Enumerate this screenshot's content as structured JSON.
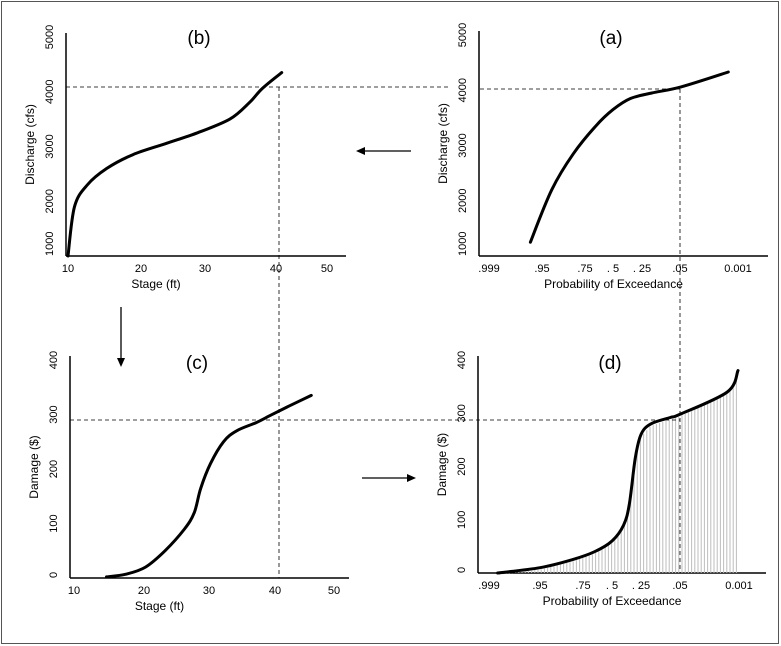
{
  "chart_data": [
    {
      "id": "a",
      "type": "line",
      "title": "(a)",
      "xlabel": "Probability of Exceedance",
      "ylabel": "Discharge  (cfs)",
      "xticks": [
        ".999",
        ".95",
        ".75",
        ". 5",
        ". 25",
        ".05",
        "0.001"
      ],
      "yticks": [
        "1000",
        "2000",
        "3000",
        "4000",
        "5000"
      ],
      "ylim": [
        1000,
        5000
      ],
      "x": [
        ".96",
        ".90",
        ".80",
        ".65",
        ".50",
        ".35",
        ".20",
        ".05",
        ".01"
      ],
      "y": [
        1250,
        2200,
        2850,
        3350,
        3650,
        3850,
        3950,
        4060,
        4330
      ],
      "shaded": false
    },
    {
      "id": "b",
      "type": "line",
      "title": "(b)",
      "xlabel": "Stage (ft)",
      "ylabel": "Discharge  (cfs)",
      "xticks": [
        "10",
        "20",
        "30",
        "40",
        "50"
      ],
      "yticks": [
        "1000",
        "2000",
        "3000",
        "4000",
        "5000"
      ],
      "xlim": [
        10,
        50
      ],
      "ylim": [
        1000,
        5000
      ],
      "x": [
        10,
        11,
        13,
        16,
        20,
        25,
        30,
        35,
        38,
        40,
        43
      ],
      "y": [
        1000,
        1900,
        2300,
        2600,
        2850,
        3050,
        3250,
        3500,
        3800,
        4060,
        4350
      ],
      "shaded": false
    },
    {
      "id": "c",
      "type": "line",
      "title": "(c)",
      "xlabel": "Stage (ft)",
      "ylabel": "Damage ($)",
      "xticks": [
        "10",
        "20",
        "30",
        "40",
        "50"
      ],
      "yticks": [
        "0",
        "100",
        "200",
        "300",
        "400"
      ],
      "xlim": [
        10,
        50
      ],
      "ylim": [
        0,
        400
      ],
      "x": [
        15,
        18,
        21,
        24,
        27,
        28.5,
        29.5,
        31,
        33,
        35,
        38,
        40,
        43,
        46.5
      ],
      "y": [
        2,
        7,
        20,
        50,
        90,
        120,
        165,
        210,
        250,
        270,
        285,
        297,
        315,
        335
      ],
      "shaded": false
    },
    {
      "id": "d",
      "type": "area",
      "title": "(d)",
      "xlabel": "Probability of Exceedance",
      "ylabel": "Damage ($)",
      "xticks": [
        ".999",
        ".95",
        ".75",
        ". 5",
        ". 25",
        ".05",
        "0.001"
      ],
      "yticks": [
        "0",
        "100",
        "200",
        "300",
        "400"
      ],
      "ylim": [
        0,
        400
      ],
      "x": [
        ".99",
        ".95",
        ".80",
        ".65",
        ".50",
        ".40",
        ".35",
        ".30",
        ".25",
        ".20",
        ".10",
        ".05",
        ".01",
        ".001"
      ],
      "y": [
        0,
        10,
        25,
        40,
        60,
        90,
        130,
        215,
        260,
        280,
        292,
        298,
        340,
        380
      ],
      "shaded": true
    }
  ]
}
